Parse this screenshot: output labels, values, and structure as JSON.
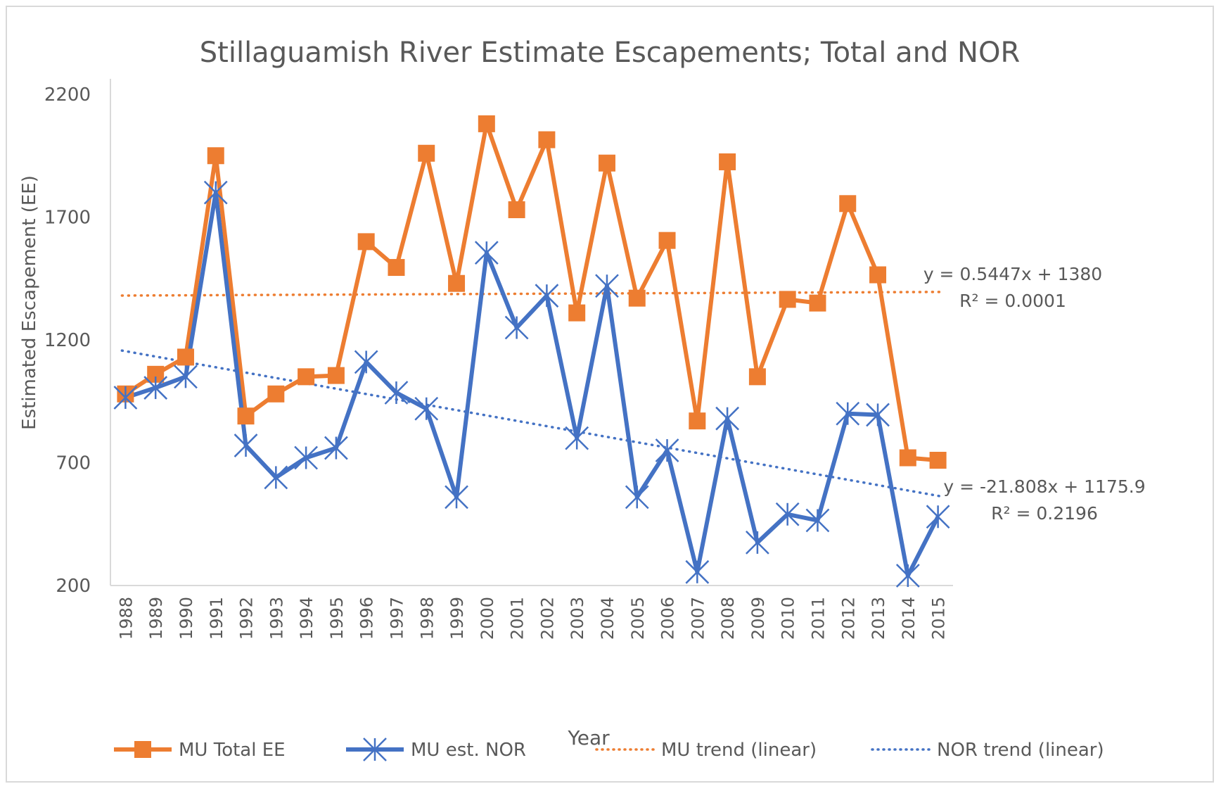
{
  "chart_data": {
    "type": "line",
    "title": "Stillaguamish River Estimate Escapements; Total and NOR",
    "xlabel": "Year",
    "ylabel": "Estimated Escapement (EE)",
    "ylim": [
      200,
      2200
    ],
    "yticks": [
      200,
      700,
      1200,
      1700,
      2200
    ],
    "grid": false,
    "legend_position": "bottom",
    "categories": [
      "1988",
      "1989",
      "1990",
      "1991",
      "1992",
      "1993",
      "1994",
      "1995",
      "1996",
      "1997",
      "1998",
      "1999",
      "2000",
      "2001",
      "2002",
      "2003",
      "2004",
      "2005",
      "2006",
      "2007",
      "2008",
      "2009",
      "2010",
      "2011",
      "2012",
      "2013",
      "2014",
      "2015"
    ],
    "series": [
      {
        "name": "MU Total EE",
        "color": "#ED7D31",
        "marker": "square",
        "values": [
          980,
          1060,
          1130,
          1950,
          890,
          980,
          1050,
          1055,
          1600,
          1495,
          1960,
          1430,
          2080,
          1730,
          2015,
          1310,
          1920,
          1370,
          1605,
          870,
          1925,
          1050,
          1365,
          1350,
          1755,
          1465,
          720,
          710
        ]
      },
      {
        "name": "MU est. NOR",
        "color": "#4472C4",
        "marker": "asterisk",
        "values": [
          965,
          1005,
          1050,
          1800,
          770,
          640,
          720,
          760,
          1110,
          985,
          920,
          560,
          1555,
          1250,
          1380,
          800,
          1420,
          560,
          750,
          255,
          880,
          375,
          490,
          465,
          900,
          895,
          240,
          480
        ]
      }
    ],
    "trendlines": [
      {
        "name": "MU trend (linear)",
        "color": "#ED7D31",
        "slope": 0.5447,
        "intercept": 1380,
        "equation": "y = 0.5447x + 1380",
        "r2": "R² = 0.0001"
      },
      {
        "name": "NOR trend (linear)",
        "color": "#4472C4",
        "slope": -21.808,
        "intercept": 1175.9,
        "equation": "y = -21.808x + 1175.9",
        "r2": "R² = 0.2196"
      }
    ]
  }
}
